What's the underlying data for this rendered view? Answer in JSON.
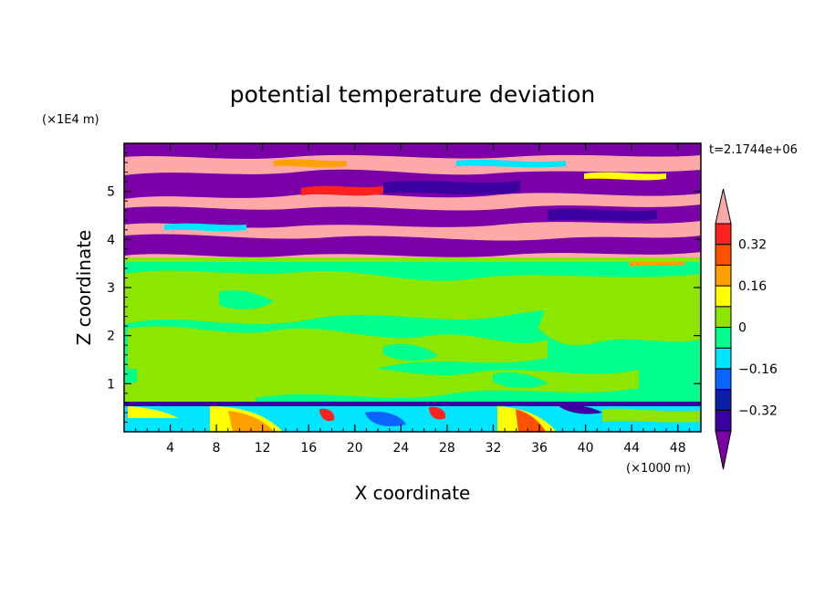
{
  "chart_data": {
    "type": "heatmap",
    "title": "potential temperature deviation",
    "xlabel": "X coordinate",
    "ylabel": "Z coordinate",
    "x_unit": "(×1000 m)",
    "y_unit": "(×1E4 m)",
    "time_label": "t=2.1744e+06",
    "xlim": [
      0,
      50
    ],
    "ylim": [
      0,
      6
    ],
    "x_ticks": [
      4,
      8,
      12,
      16,
      20,
      24,
      28,
      32,
      36,
      40,
      44,
      48
    ],
    "y_ticks": [
      1,
      2,
      3,
      4,
      5
    ],
    "colorbar": {
      "levels": [
        -0.4,
        -0.32,
        -0.24,
        -0.16,
        -0.08,
        0,
        0.08,
        0.16,
        0.24,
        0.32,
        0.4
      ],
      "labels": [
        "0.32",
        "0.16",
        "0",
        "−0.16",
        "−0.32"
      ],
      "label_values": [
        0.32,
        0.16,
        0,
        -0.16,
        -0.32
      ],
      "colors": [
        "#7a00a8",
        "#3c00a0",
        "#0a1ea8",
        "#0a64ff",
        "#00e6ff",
        "#00ff8c",
        "#8ce600",
        "#ffff00",
        "#ffa000",
        "#ff5000",
        "#ff2020",
        "#ffa8a8"
      ]
    },
    "regions": [
      {
        "z_range": [
          0,
          0.6
        ],
        "description": "surface layer mixed cyan, yellow, orange, red, blue"
      },
      {
        "z_range": [
          0.6,
          3.6
        ],
        "description": "mixed green and light-green values near 0"
      },
      {
        "z_range": [
          3.6,
          6.0
        ],
        "description": "banded purple and pink extremes with red, orange, cyan streaks"
      }
    ]
  }
}
